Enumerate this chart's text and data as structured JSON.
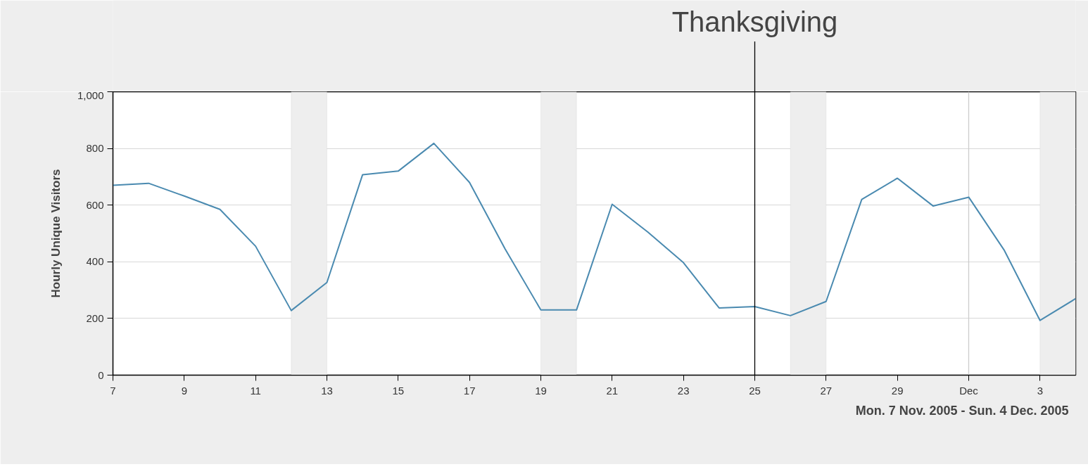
{
  "chart_data": {
    "type": "line",
    "ylabel": "Hourly Unique Visitors",
    "x": [
      "2005-11-07",
      "2005-11-08",
      "2005-11-09",
      "2005-11-10",
      "2005-11-11",
      "2005-11-12",
      "2005-11-13",
      "2005-11-14",
      "2005-11-15",
      "2005-11-16",
      "2005-11-17",
      "2005-11-18",
      "2005-11-19",
      "2005-11-20",
      "2005-11-21",
      "2005-11-22",
      "2005-11-23",
      "2005-11-24",
      "2005-11-25",
      "2005-11-26",
      "2005-11-27",
      "2005-11-28",
      "2005-11-29",
      "2005-11-30",
      "2005-12-01",
      "2005-12-02",
      "2005-12-03",
      "2005-12-04"
    ],
    "series": [
      {
        "color": "#4a8ab0",
        "values": [
          670,
          677,
          632,
          585,
          455,
          228,
          327,
          707,
          720,
          818,
          680,
          445,
          230,
          230,
          603,
          505,
          397,
          237,
          242,
          210,
          260,
          620,
          695,
          597,
          628,
          440,
          193,
          270
        ]
      }
    ],
    "xlim": [
      "2005-11-07",
      "2005-12-04"
    ],
    "xticks": [
      {
        "value": "2005-11-07",
        "label": "7"
      },
      {
        "value": "2005-11-09",
        "label": "9"
      },
      {
        "value": "2005-11-11",
        "label": "11"
      },
      {
        "value": "2005-11-13",
        "label": "13"
      },
      {
        "value": "2005-11-15",
        "label": "15"
      },
      {
        "value": "2005-11-17",
        "label": "17"
      },
      {
        "value": "2005-11-19",
        "label": "19"
      },
      {
        "value": "2005-11-21",
        "label": "21"
      },
      {
        "value": "2005-11-23",
        "label": "23"
      },
      {
        "value": "2005-11-25",
        "label": "25"
      },
      {
        "value": "2005-11-27",
        "label": "27"
      },
      {
        "value": "2005-11-29",
        "label": "29"
      },
      {
        "value": "2005-12-01",
        "label": "Dec"
      },
      {
        "value": "2005-12-03",
        "label": "3"
      }
    ],
    "ylim": [
      0,
      1000
    ],
    "yticks": [
      0,
      200,
      400,
      600,
      800,
      {
        "value": 1000,
        "label": "1,000"
      }
    ],
    "grid": "y",
    "ref_lines": [
      {
        "axis": "x",
        "value": "2005-11-25",
        "label": "Thanksgiving",
        "color": "#000000"
      },
      {
        "axis": "x",
        "value": "2005-12-01",
        "color": "#cccccc"
      }
    ],
    "bands": [
      {
        "axis": "x",
        "from": "2005-11-12",
        "to": "2005-11-13",
        "color": "#eeeeee"
      },
      {
        "axis": "x",
        "from": "2005-11-19",
        "to": "2005-11-20",
        "color": "#eeeeee"
      },
      {
        "axis": "x",
        "from": "2005-11-26",
        "to": "2005-11-27",
        "color": "#eeeeee"
      },
      {
        "axis": "x",
        "from": "2005-12-03",
        "to": "2005-12-04",
        "color": "#eeeeee"
      }
    ],
    "annotations": [
      "Mon.  7 Nov. 2005 - Sun.  4 Dec. 2005"
    ]
  }
}
